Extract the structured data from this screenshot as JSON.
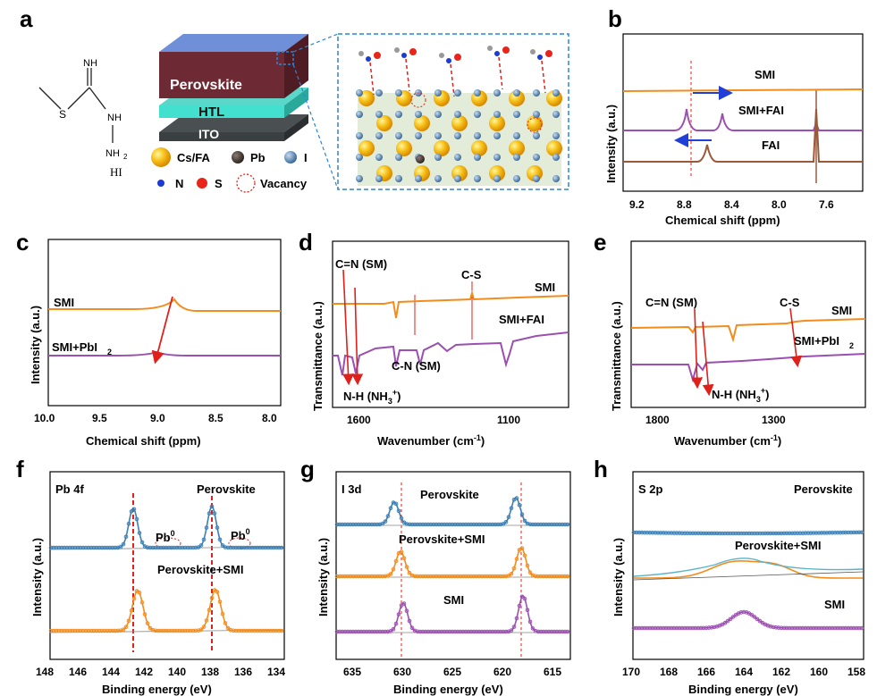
{
  "panel_letters": [
    "a",
    "b",
    "c",
    "d",
    "e",
    "f",
    "g",
    "h"
  ],
  "colors": {
    "orange": "#f28c1c",
    "purple": "#9b4fb0",
    "brown": "#9a5a3a",
    "blue": "#3c7fb4",
    "red": "#e0201b",
    "gray": "#888888"
  },
  "panel_a": {
    "molecule_labels": {
      "nh": "NH",
      "s": "S",
      "nh2": "NH",
      "nh2b": "NH",
      "sub2": "2",
      "hi": "HI"
    },
    "stack_layers": [
      "Perovskite",
      "HTL",
      "ITO"
    ],
    "legend": {
      "csfa": "Cs/FA",
      "pb": "Pb",
      "i": "I",
      "n": "N",
      "s": "S",
      "vacancy": "Vacancy"
    }
  },
  "panel_b": {
    "ylabel": "Intensity (a.u.)",
    "xlabel": "Chemical shift (ppm)",
    "xticks": [
      "9.2",
      "8.8",
      "8.4",
      "8.0",
      "7.6"
    ],
    "labels": {
      "smi": "SMI",
      "smifai": "SMI+FAI",
      "fai": "FAI"
    }
  },
  "panel_c": {
    "ylabel": "Intensity (a.u.)",
    "xlabel": "Chemical shift (ppm)",
    "xticks": [
      "10.0",
      "9.5",
      "9.0",
      "8.5",
      "8.0"
    ],
    "labels": {
      "smi": "SMI",
      "smipbi": "SMI+PbI",
      "sub": "2"
    }
  },
  "panel_d": {
    "ylabel": "Transmittance (a.u.)",
    "xlabel": "Wavenumber (cm",
    "xlabel_sup": "-1",
    "xlabel_end": ")",
    "xticks": [
      "1600",
      "1100"
    ],
    "labels": {
      "cn": "C=N (SM)",
      "cs": "C-S",
      "smi": "SMI",
      "smifai": "SMI+FAI",
      "cnsm": "C-N (SM)",
      "nh": "N-H (NH",
      "nh_sub": "3",
      "nh_sup": "+",
      "nh_end": ")"
    }
  },
  "panel_e": {
    "ylabel": "Transmittance (a.u.)",
    "xlabel": "Wavenumber (cm",
    "xlabel_sup": "-1",
    "xlabel_end": ")",
    "xticks": [
      "1800",
      "1300"
    ],
    "labels": {
      "cn": "C=N (SM)",
      "cs": "C-S",
      "smi": "SMI",
      "smipbi": "SMI+PbI",
      "sub": "2",
      "nh": "N-H (NH",
      "nh_sub": "3",
      "nh_sup": "+",
      "nh_end": ")"
    }
  },
  "panel_f": {
    "ylabel": "Intensity (a.u.)",
    "xlabel": "Binding energy (eV)",
    "xticks": [
      "148",
      "146",
      "144",
      "142",
      "140",
      "138",
      "136",
      "134"
    ],
    "labels": {
      "core": "Pb 4f",
      "pero": "Perovskite",
      "pb0a": "Pb",
      "pb0b": "Pb",
      "sup0": "0",
      "perosmi": "Perovskite+SMI"
    }
  },
  "panel_g": {
    "ylabel": "Intensity (a.u.)",
    "xlabel": "Binding energy (eV)",
    "xticks": [
      "635",
      "630",
      "625",
      "620",
      "615"
    ],
    "labels": {
      "core": "I 3d",
      "pero": "Perovskite",
      "perosmi": "Perovskite+SMI",
      "smi": "SMI"
    }
  },
  "panel_h": {
    "ylabel": "Intensity (a.u.)",
    "xlabel": "Binding energy (eV)",
    "xticks": [
      "170",
      "168",
      "166",
      "164",
      "162",
      "160",
      "158"
    ],
    "labels": {
      "core": "S 2p",
      "pero": "Perovskite",
      "perosmi": "Perovskite+SMI",
      "smi": "SMI"
    }
  }
}
